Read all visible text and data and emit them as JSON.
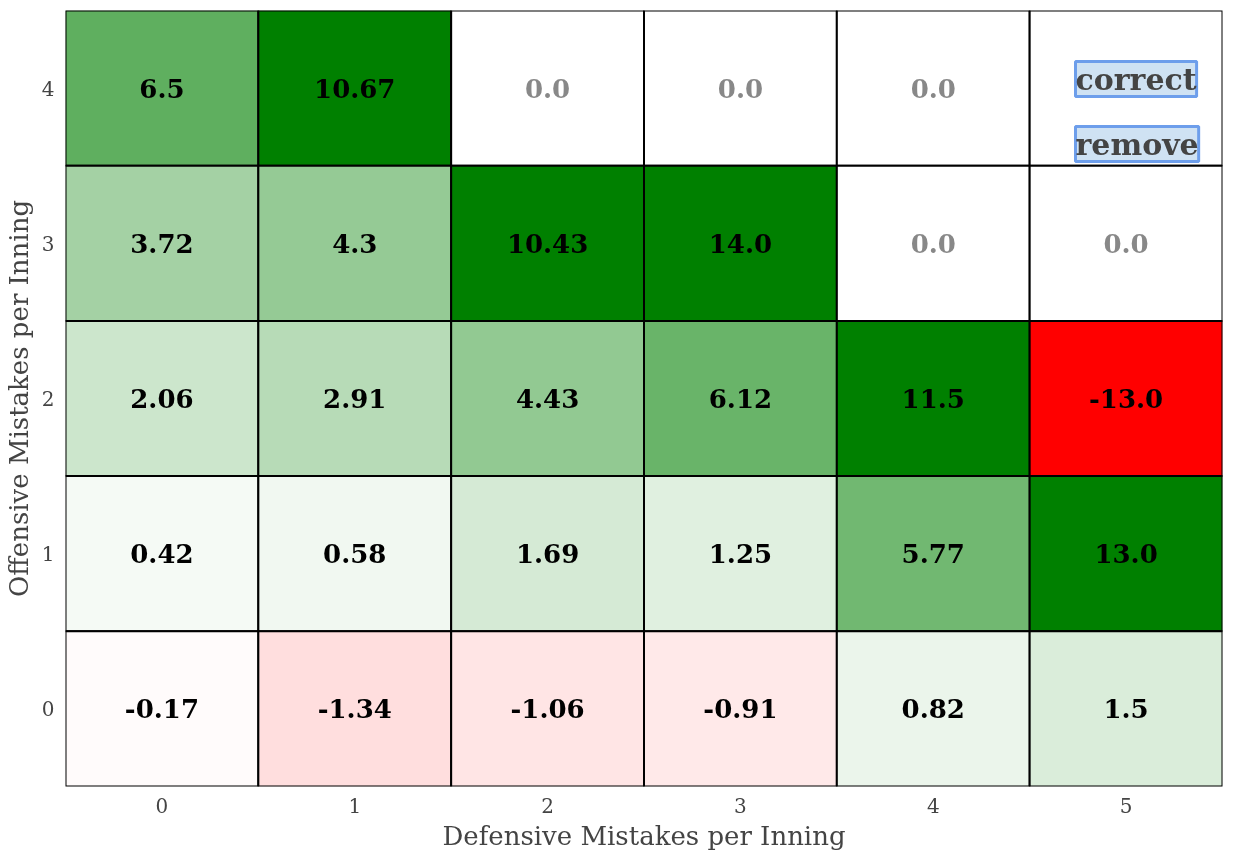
{
  "chart_data": {
    "type": "heatmap",
    "xlabel": "Defensive Mistakes per Inning",
    "ylabel": "Offensive Mistakes per Inning",
    "categories": [
      "0",
      "1",
      "2",
      "3",
      "4",
      "5"
    ],
    "y_categories": [
      "4",
      "3",
      "2",
      "1",
      "0"
    ],
    "cells": [
      [
        6.5,
        10.67,
        0.0,
        0.0,
        0.0,
        null
      ],
      [
        3.72,
        4.3,
        10.43,
        14.0,
        0.0,
        0.0
      ],
      [
        2.06,
        2.91,
        4.43,
        6.12,
        11.5,
        -13.0
      ],
      [
        0.42,
        0.58,
        1.69,
        1.25,
        5.77,
        13.0
      ],
      [
        -0.17,
        -1.34,
        -1.06,
        -0.91,
        0.82,
        1.5
      ]
    ],
    "cell_labels": [
      [
        "6.5",
        "10.67",
        "0.0",
        "0.0",
        "0.0",
        null
      ],
      [
        "3.72",
        "4.3",
        "10.43",
        "14.0",
        "0.0",
        "0.0"
      ],
      [
        "2.06",
        "2.91",
        "4.43",
        "6.12",
        "11.5",
        "-13.0"
      ],
      [
        "0.42",
        "0.58",
        "1.69",
        "1.25",
        "5.77",
        "13.0"
      ],
      [
        "-0.17",
        "-1.34",
        "-1.06",
        "-0.91",
        "0.82",
        "1.5"
      ]
    ],
    "data_labels": true,
    "annotations": [
      "correct",
      "remove"
    ]
  }
}
